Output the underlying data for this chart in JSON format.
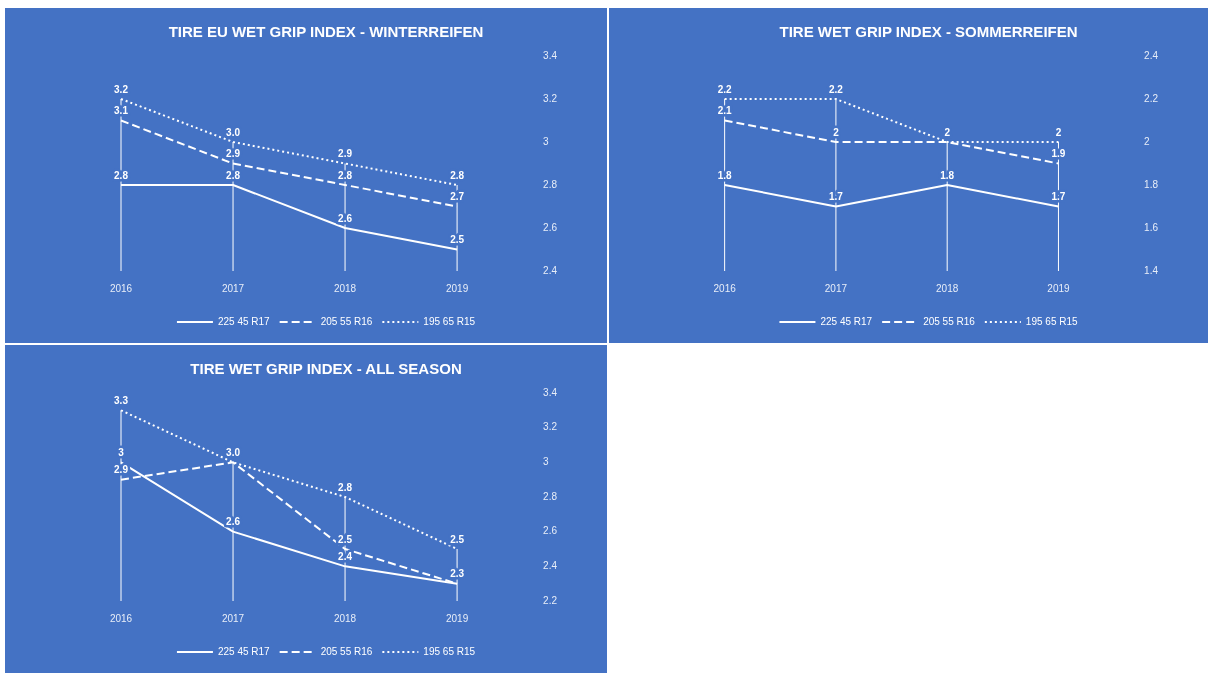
{
  "chart_data": [
    {
      "type": "line",
      "title": "TIRE EU WET GRIP INDEX - WINTERREIFEN",
      "categories": [
        "2016",
        "2017",
        "2018",
        "2019"
      ],
      "ylim": [
        2.4,
        3.4
      ],
      "yticks": [
        2.4,
        2.6,
        2.8,
        3,
        3.2,
        3.4
      ],
      "legend": "bottom",
      "series": [
        {
          "name": "225 45 R17",
          "color": "#ffffff",
          "line_style": "solid",
          "values": [
            2.8,
            2.8,
            2.6,
            2.5
          ],
          "value_labels": [
            "2.8",
            "2.8",
            "2.6",
            "2.5"
          ]
        },
        {
          "name": "205 55 R16",
          "color": "#ffffff",
          "line_style": "dashed",
          "values": [
            3.1,
            2.9,
            2.8,
            2.7
          ],
          "value_labels": [
            "3.1",
            "2.9",
            "2.8",
            "2.7"
          ]
        },
        {
          "name": "195 65 R15",
          "color": "#ffffff",
          "line_style": "dotted",
          "values": [
            3.2,
            3.0,
            2.9,
            2.8
          ],
          "value_labels": [
            "3.2",
            "3.0",
            "2.9",
            "2.8"
          ]
        }
      ]
    },
    {
      "type": "line",
      "title": "TIRE WET GRIP INDEX - SOMMERREIFEN",
      "categories": [
        "2016",
        "2017",
        "2018",
        "2019"
      ],
      "ylim": [
        1.4,
        2.4
      ],
      "yticks": [
        1.4,
        1.6,
        1.8,
        2,
        2.2,
        2.4
      ],
      "legend": "bottom",
      "series": [
        {
          "name": "225 45 R17",
          "color": "#ffffff",
          "line_style": "solid",
          "values": [
            1.8,
            1.7,
            1.8,
            1.7
          ],
          "value_labels": [
            "1.8",
            "1.7",
            "1.8",
            "1.7"
          ]
        },
        {
          "name": "205 55 R16",
          "color": "#ffffff",
          "line_style": "dashed",
          "values": [
            2.1,
            2,
            2,
            1.9
          ],
          "value_labels": [
            "2.1",
            "2",
            "2",
            "1.9"
          ]
        },
        {
          "name": "195 65 R15",
          "color": "#ffffff",
          "line_style": "dotted",
          "values": [
            2.2,
            2.2,
            2,
            2
          ],
          "value_labels": [
            "2.2",
            "2.2",
            null,
            "2"
          ]
        }
      ]
    },
    {
      "type": "line",
      "title": "TIRE WET GRIP INDEX - ALL SEASON",
      "categories": [
        "2016",
        "2017",
        "2018",
        "2019"
      ],
      "ylim": [
        2.2,
        3.4
      ],
      "yticks": [
        2.2,
        2.4,
        2.6,
        2.8,
        3,
        3.2,
        3.4
      ],
      "legend": "bottom",
      "series": [
        {
          "name": "225 45 R17",
          "color": "#ffffff",
          "line_style": "solid",
          "values": [
            3,
            2.6,
            2.4,
            2.3
          ],
          "value_labels": [
            "3",
            "2.6",
            "2.4",
            "2.3"
          ]
        },
        {
          "name": "205 55 R16",
          "color": "#ffffff",
          "line_style": "dashed",
          "values": [
            2.9,
            3.0,
            2.5,
            2.3
          ],
          "value_labels": [
            "2.9",
            null,
            "2.5",
            null
          ]
        },
        {
          "name": "195 65 R15",
          "color": "#ffffff",
          "line_style": "dotted",
          "values": [
            3.3,
            3.0,
            2.8,
            2.5
          ],
          "value_labels": [
            "3.3",
            "3.0",
            "2.8",
            "2.5"
          ]
        }
      ]
    }
  ]
}
